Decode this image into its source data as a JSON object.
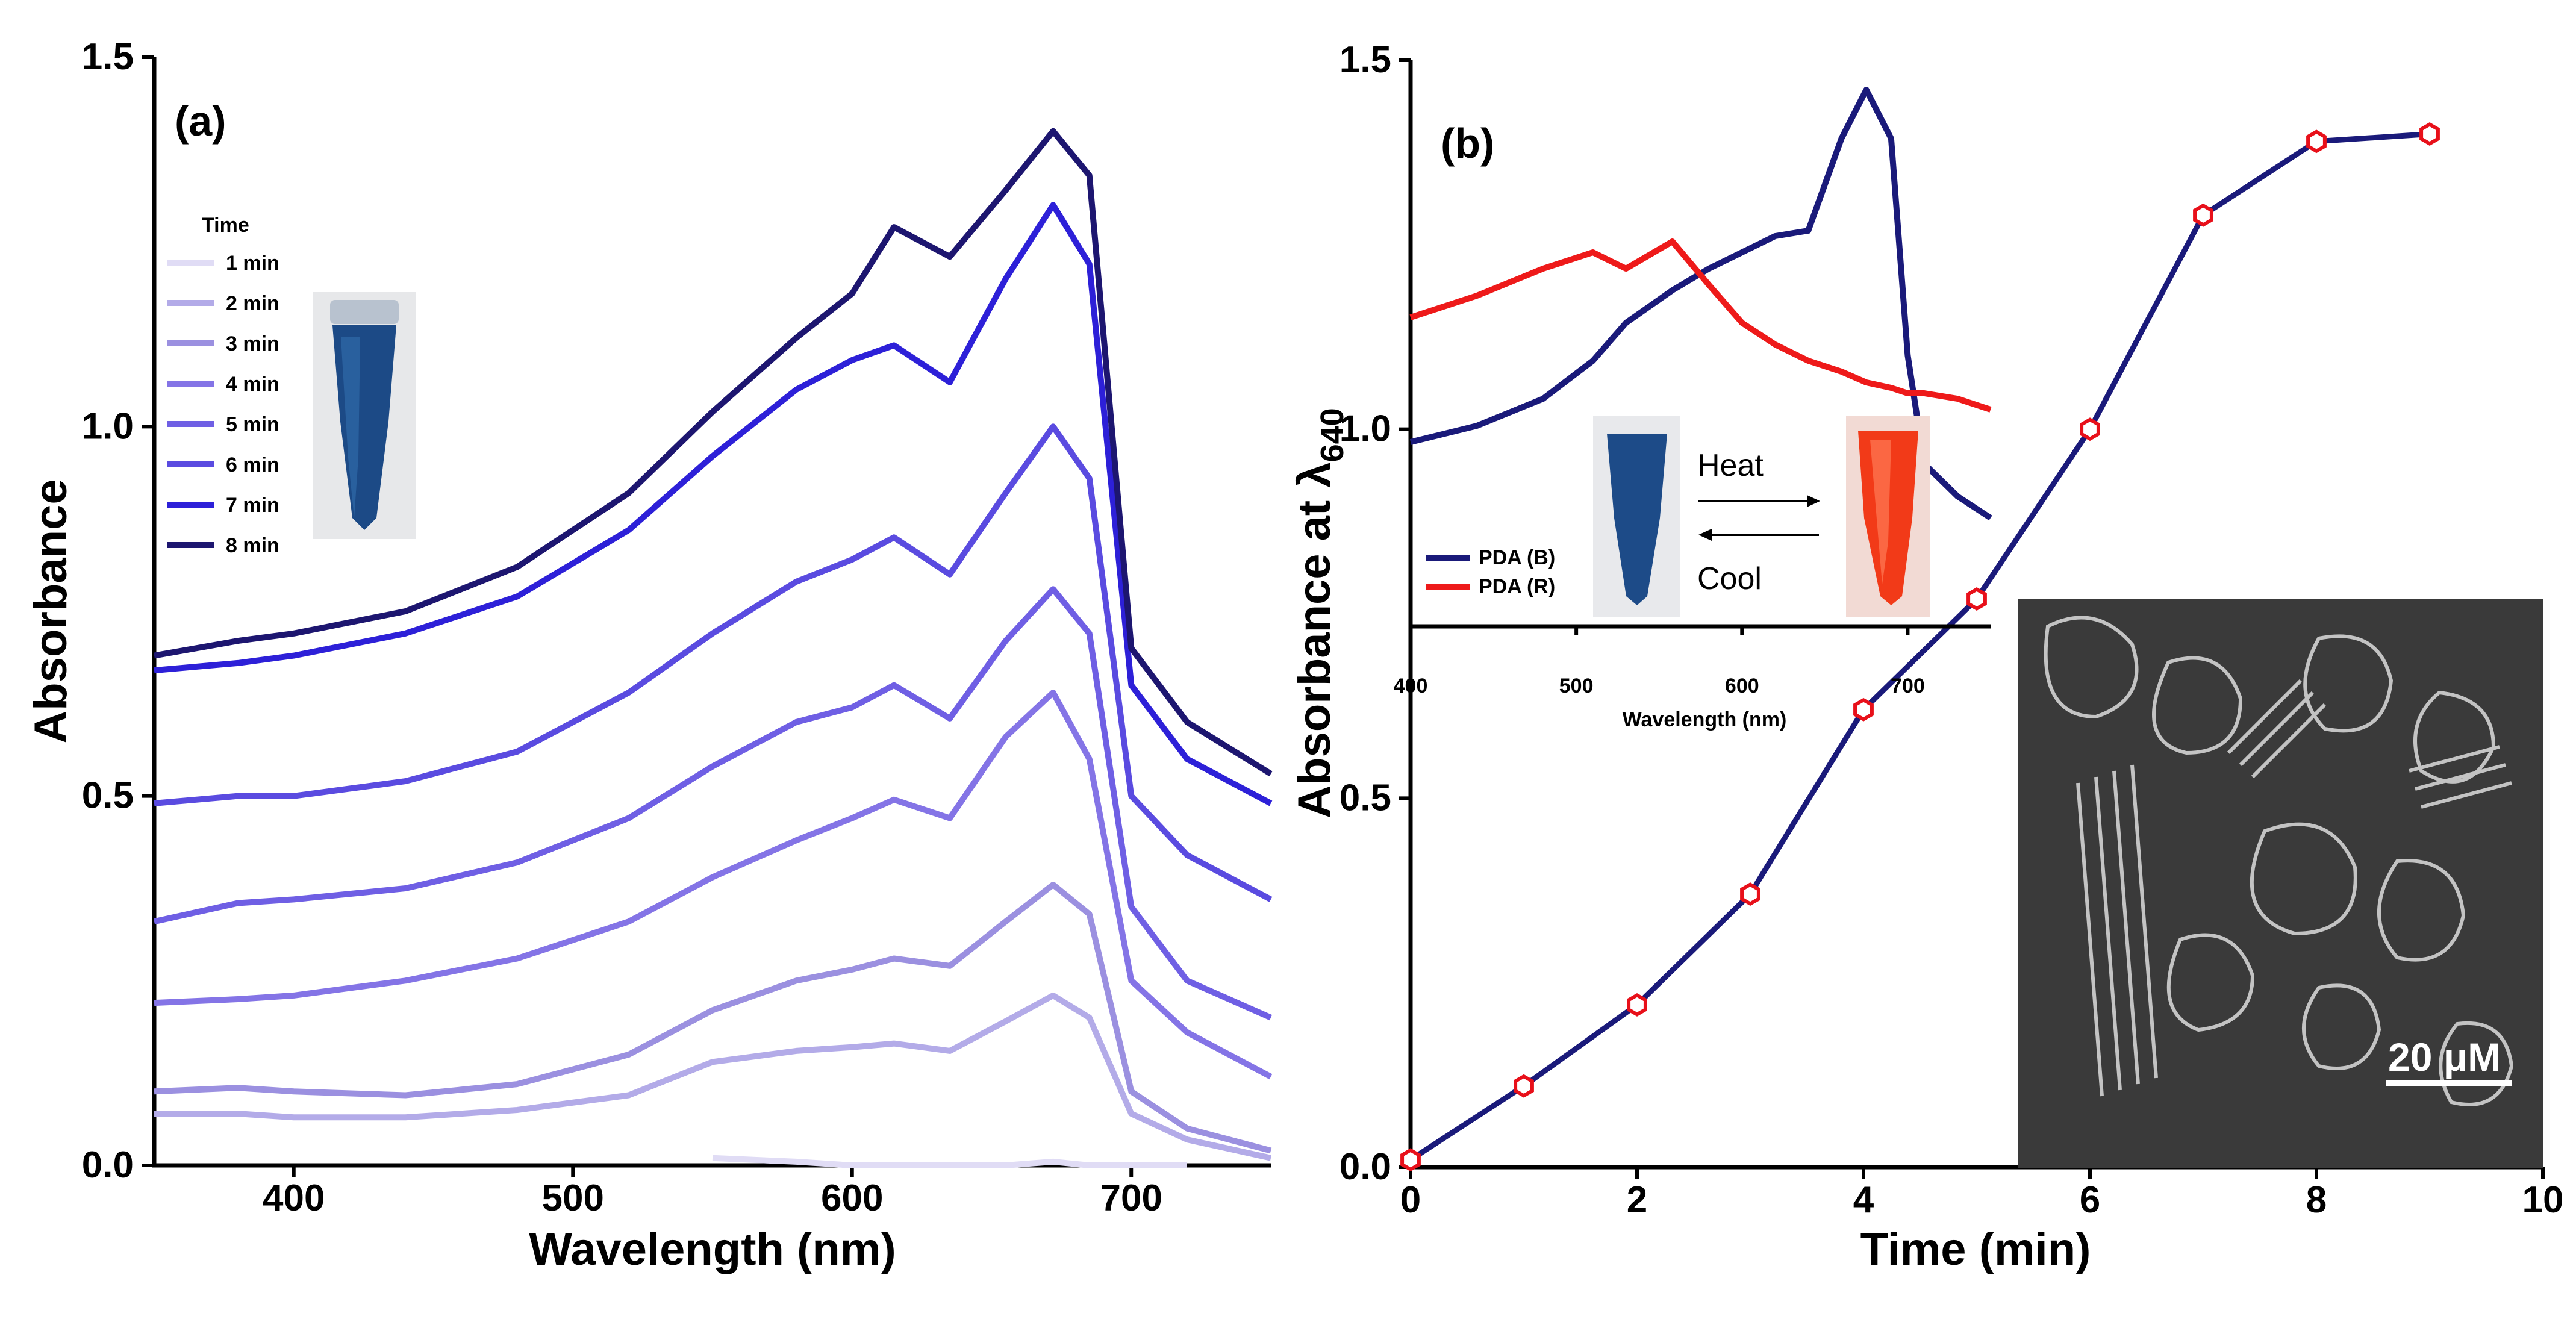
{
  "chart_data": [
    {
      "panel_label": "(a)",
      "type": "line",
      "xlabel": "Wavelength (nm)",
      "ylabel": "Absorbance",
      "xlim": [
        350,
        750
      ],
      "ylim": [
        0.0,
        1.5
      ],
      "x_ticks": [
        "400",
        "500",
        "600",
        "700"
      ],
      "y_ticks": [
        "0.0",
        "0.5",
        "1.0",
        "1.5"
      ],
      "legend_title": "Time",
      "legend_position": "top-left",
      "x": [
        350,
        380,
        400,
        440,
        480,
        520,
        550,
        580,
        600,
        615,
        635,
        655,
        672,
        685,
        700,
        720,
        750
      ],
      "series": [
        {
          "name": "1 min",
          "color": "#e0dcf5",
          "values": [
            null,
            null,
            null,
            null,
            null,
            null,
            0.01,
            0.005,
            0.0,
            0.0,
            0.0,
            0.0,
            0.005,
            0.0,
            0.0,
            0.0,
            null
          ]
        },
        {
          "name": "2 min",
          "color": "#b3abe8",
          "values": [
            0.07,
            0.07,
            0.065,
            0.065,
            0.075,
            0.095,
            0.14,
            0.155,
            0.16,
            0.165,
            0.155,
            0.195,
            0.23,
            0.2,
            0.07,
            0.035,
            0.01
          ]
        },
        {
          "name": "3 min",
          "color": "#9b90e0",
          "values": [
            0.1,
            0.105,
            0.1,
            0.095,
            0.11,
            0.15,
            0.21,
            0.25,
            0.265,
            0.28,
            0.27,
            0.33,
            0.38,
            0.34,
            0.1,
            0.05,
            0.02
          ]
        },
        {
          "name": "4 min",
          "color": "#8474e6",
          "values": [
            0.22,
            0.225,
            0.23,
            0.25,
            0.28,
            0.33,
            0.39,
            0.44,
            0.47,
            0.495,
            0.47,
            0.58,
            0.64,
            0.55,
            0.25,
            0.18,
            0.12
          ]
        },
        {
          "name": "5 min",
          "color": "#6f5fe4",
          "values": [
            0.33,
            0.355,
            0.36,
            0.375,
            0.41,
            0.47,
            0.54,
            0.6,
            0.62,
            0.65,
            0.605,
            0.71,
            0.78,
            0.72,
            0.35,
            0.25,
            0.2
          ]
        },
        {
          "name": "6 min",
          "color": "#5a4be0",
          "values": [
            0.49,
            0.5,
            0.5,
            0.52,
            0.56,
            0.64,
            0.72,
            0.79,
            0.82,
            0.85,
            0.8,
            0.91,
            1.0,
            0.93,
            0.5,
            0.42,
            0.36
          ]
        },
        {
          "name": "7 min",
          "color": "#2d20d8",
          "values": [
            0.67,
            0.68,
            0.69,
            0.72,
            0.77,
            0.86,
            0.96,
            1.05,
            1.09,
            1.11,
            1.06,
            1.2,
            1.3,
            1.22,
            0.65,
            0.55,
            0.49
          ]
        },
        {
          "name": "8 min",
          "color": "#1d1670",
          "values": [
            0.69,
            0.71,
            0.72,
            0.75,
            0.81,
            0.91,
            1.02,
            1.12,
            1.18,
            1.27,
            1.23,
            1.32,
            1.4,
            1.34,
            0.7,
            0.6,
            0.53
          ]
        }
      ]
    },
    {
      "panel_label": "(b)",
      "type": "line",
      "xlabel": "Time (min)",
      "ylabel": "Absorbance at λ640",
      "ylabel_main": "Absorbance at λ",
      "ylabel_sub": "640",
      "xlim": [
        0,
        10
      ],
      "ylim": [
        0.0,
        1.5
      ],
      "x_ticks": [
        "0",
        "2",
        "4",
        "6",
        "8",
        "10"
      ],
      "y_ticks": [
        "0.0",
        "0.5",
        "1.0",
        "1.5"
      ],
      "line_color": "#1a1a7a",
      "marker_color": "#e8101a",
      "x": [
        0,
        1,
        2,
        3,
        4,
        5,
        6,
        7,
        8,
        9
      ],
      "values": [
        0.01,
        0.11,
        0.22,
        0.37,
        0.62,
        0.77,
        1.0,
        1.29,
        1.39,
        1.4
      ]
    },
    {
      "type": "line",
      "role": "inset",
      "xlabel": "Wavelength (nm)",
      "xlim": [
        400,
        750
      ],
      "x_ticks": [
        "400",
        "500",
        "600",
        "700"
      ],
      "ylim": [
        0.0,
        1.0
      ],
      "legend_position": "bottom-left",
      "x": [
        400,
        440,
        480,
        510,
        530,
        558,
        580,
        600,
        620,
        640,
        660,
        675,
        690,
        700,
        710,
        730,
        750
      ],
      "series": [
        {
          "name": "PDA (B)",
          "color": "#1a1a7a",
          "values": [
            0.34,
            0.37,
            0.42,
            0.49,
            0.56,
            0.62,
            0.66,
            0.69,
            0.72,
            0.73,
            0.9,
            0.99,
            0.9,
            0.5,
            0.3,
            0.24,
            0.2
          ]
        },
        {
          "name": "PDA (R)",
          "color": "#ee1a1a",
          "values": [
            0.57,
            0.61,
            0.66,
            0.69,
            0.66,
            0.71,
            0.63,
            0.56,
            0.52,
            0.49,
            0.47,
            0.45,
            0.44,
            0.43,
            0.43,
            0.42,
            0.4
          ]
        }
      ]
    }
  ],
  "annotations": {
    "heat_label": "Heat",
    "cool_label": "Cool",
    "sem_scale_label": "20 μM"
  }
}
